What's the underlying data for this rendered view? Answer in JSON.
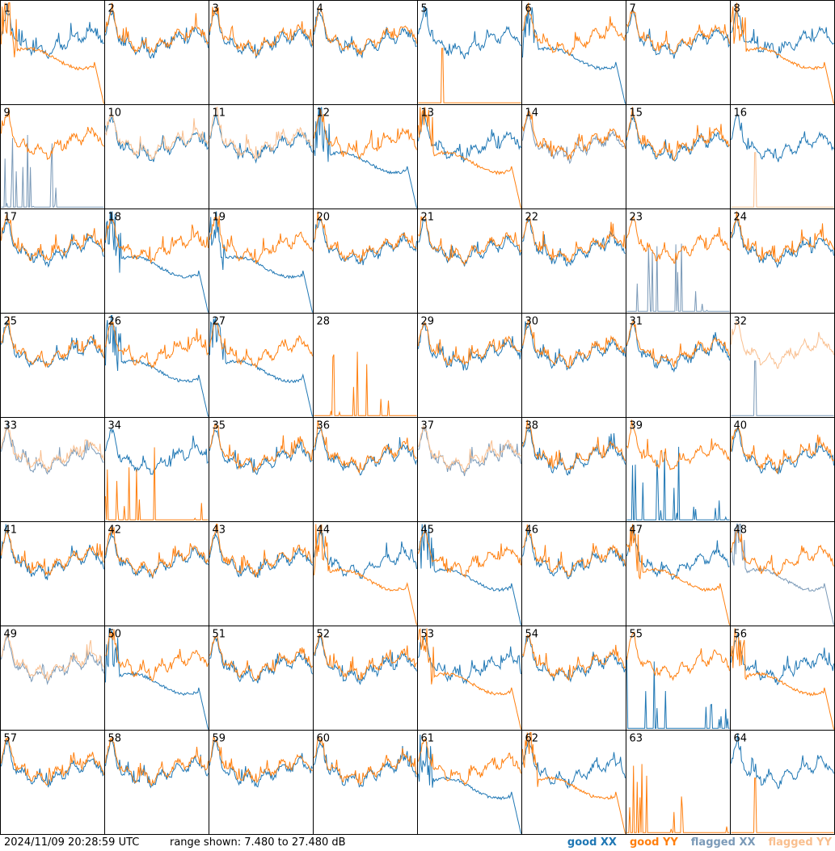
{
  "footer": {
    "timestamp": "2024/11/09 20:28:59 UTC",
    "range_text": "range shown: 7.480 to 27.480 dB"
  },
  "legend": [
    {
      "prefix": "good ",
      "pol": "XX",
      "color": "#1f77b4"
    },
    {
      "prefix": "good ",
      "pol": "YY",
      "color": "#ff7f0e"
    },
    {
      "prefix": "flagged ",
      "pol": "XX",
      "color": "#7b9ab8"
    },
    {
      "prefix": "flagged ",
      "pol": "YY",
      "color": "#f9bf8f"
    }
  ],
  "colors": {
    "good_xx": "#1f77b4",
    "good_yy": "#ff7f0e",
    "flagged_xx": "#7b9ab8",
    "flagged_yy": "#f9bf8f"
  },
  "chart_data": {
    "type": "line",
    "layout": "8x8 small multiples",
    "y_range_db": [
      7.48,
      27.48
    ],
    "x_axis": "channel (unlabeled)",
    "tiles": [
      {
        "label": "1",
        "xx": "normal",
        "yy": "dropout"
      },
      {
        "label": "2",
        "xx": "normal",
        "yy": "normal"
      },
      {
        "label": "3",
        "xx": "normal",
        "yy": "normal"
      },
      {
        "label": "4",
        "xx": "normal",
        "yy": "normal"
      },
      {
        "label": "5",
        "xx": "normal",
        "yy": "flat_low"
      },
      {
        "label": "6",
        "xx": "dropout",
        "yy": "normal"
      },
      {
        "label": "7",
        "xx": "normal",
        "yy": "normal"
      },
      {
        "label": "8",
        "xx": "normal",
        "yy": "dropout"
      },
      {
        "label": "9",
        "xx": "spiky_flagged",
        "yy": "normal"
      },
      {
        "label": "10",
        "xx": "normal",
        "yy": "normal_flagged"
      },
      {
        "label": "11",
        "xx": "normal",
        "yy": "normal_flagged"
      },
      {
        "label": "12",
        "xx": "dropout",
        "yy": "normal"
      },
      {
        "label": "13",
        "xx": "normal",
        "yy": "dropout"
      },
      {
        "label": "14",
        "xx": "normal_flagged",
        "yy": "normal"
      },
      {
        "label": "15",
        "xx": "normal",
        "yy": "normal"
      },
      {
        "label": "16",
        "xx": "normal",
        "yy": "flat_low_flagged"
      },
      {
        "label": "17",
        "xx": "normal",
        "yy": "normal"
      },
      {
        "label": "18",
        "xx": "dropout",
        "yy": "normal"
      },
      {
        "label": "19",
        "xx": "dropout",
        "yy": "normal"
      },
      {
        "label": "20",
        "xx": "normal",
        "yy": "normal"
      },
      {
        "label": "21",
        "xx": "normal",
        "yy": "normal"
      },
      {
        "label": "22",
        "xx": "normal",
        "yy": "normal"
      },
      {
        "label": "23",
        "xx": "spiky_flagged",
        "yy": "normal"
      },
      {
        "label": "24",
        "xx": "normal",
        "yy": "normal"
      },
      {
        "label": "25",
        "xx": "normal",
        "yy": "normal"
      },
      {
        "label": "26",
        "xx": "dropout",
        "yy": "normal"
      },
      {
        "label": "27",
        "xx": "dropout",
        "yy": "normal"
      },
      {
        "label": "28",
        "xx": "none",
        "yy": "spiky"
      },
      {
        "label": "29",
        "xx": "normal",
        "yy": "normal"
      },
      {
        "label": "30",
        "xx": "normal",
        "yy": "normal"
      },
      {
        "label": "31",
        "xx": "normal",
        "yy": "normal"
      },
      {
        "label": "32",
        "xx": "flat_low_flagged",
        "yy": "normal_flagged"
      },
      {
        "label": "33",
        "xx": "normal_flagged",
        "yy": "normal_flagged"
      },
      {
        "label": "34",
        "xx": "normal",
        "yy": "spiky"
      },
      {
        "label": "35",
        "xx": "normal",
        "yy": "normal"
      },
      {
        "label": "36",
        "xx": "normal",
        "yy": "normal"
      },
      {
        "label": "37",
        "xx": "normal_flagged",
        "yy": "normal_flagged"
      },
      {
        "label": "38",
        "xx": "normal",
        "yy": "normal"
      },
      {
        "label": "39",
        "xx": "spiky",
        "yy": "normal"
      },
      {
        "label": "40",
        "xx": "normal",
        "yy": "normal"
      },
      {
        "label": "41",
        "xx": "normal",
        "yy": "normal"
      },
      {
        "label": "42",
        "xx": "normal",
        "yy": "normal"
      },
      {
        "label": "43",
        "xx": "normal",
        "yy": "normal"
      },
      {
        "label": "44",
        "xx": "normal",
        "yy": "dropout"
      },
      {
        "label": "45",
        "xx": "dropout",
        "yy": "normal"
      },
      {
        "label": "46",
        "xx": "normal",
        "yy": "normal"
      },
      {
        "label": "47",
        "xx": "normal",
        "yy": "dropout"
      },
      {
        "label": "48",
        "xx": "dropout_flagged",
        "yy": "normal"
      },
      {
        "label": "49",
        "xx": "normal_flagged",
        "yy": "normal_flagged"
      },
      {
        "label": "50",
        "xx": "dropout",
        "yy": "normal"
      },
      {
        "label": "51",
        "xx": "normal",
        "yy": "normal"
      },
      {
        "label": "52",
        "xx": "normal",
        "yy": "normal"
      },
      {
        "label": "53",
        "xx": "normal",
        "yy": "dropout"
      },
      {
        "label": "54",
        "xx": "normal",
        "yy": "normal"
      },
      {
        "label": "55",
        "xx": "spiky",
        "yy": "normal"
      },
      {
        "label": "56",
        "xx": "normal",
        "yy": "dropout"
      },
      {
        "label": "57",
        "xx": "normal",
        "yy": "normal"
      },
      {
        "label": "58",
        "xx": "normal",
        "yy": "normal"
      },
      {
        "label": "59",
        "xx": "normal",
        "yy": "normal"
      },
      {
        "label": "60",
        "xx": "normal",
        "yy": "normal"
      },
      {
        "label": "61",
        "xx": "dropout",
        "yy": "normal"
      },
      {
        "label": "62",
        "xx": "normal",
        "yy": "dropout"
      },
      {
        "label": "63",
        "xx": "none",
        "yy": "spiky"
      },
      {
        "label": "64",
        "xx": "normal",
        "yy": "flat_low"
      }
    ]
  }
}
